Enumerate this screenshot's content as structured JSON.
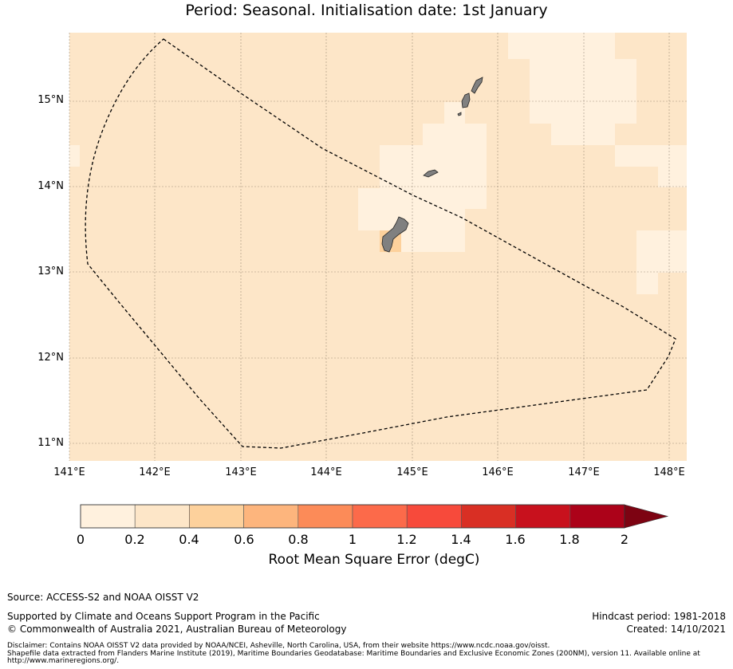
{
  "title": "Period: Seasonal. Initialisation date: 1st January",
  "map": {
    "lon_range": [
      141.0,
      148.2
    ],
    "lat_range": [
      10.8,
      15.8
    ],
    "x_ticks": [
      "141°E",
      "142°E",
      "143°E",
      "144°E",
      "145°E",
      "146°E",
      "147°E",
      "148°E"
    ],
    "y_ticks": [
      "15°N",
      "14°N",
      "13°N",
      "12°N",
      "11°N"
    ],
    "grid": true,
    "base_color": "#fde6c8",
    "low_color": "#fff1de",
    "land_color": "#808080",
    "eez_style": "dashed black line"
  },
  "colorbar": {
    "label": "Root Mean Square Error (degC)",
    "ticks": [
      "0",
      "0.2",
      "0.4",
      "0.6",
      "0.8",
      "1",
      "1.2",
      "1.4",
      "1.6",
      "1.8",
      "2"
    ],
    "colors": [
      "#fff1de",
      "#fde6c8",
      "#fdd19c",
      "#fdb57d",
      "#fc8b58",
      "#fc6a4a",
      "#f74a3b",
      "#d92f24",
      "#c8111d",
      "#ac0219"
    ],
    "extend_color": "#7d0312",
    "extend": "max"
  },
  "footer": {
    "source": "Source: ACCESS-S2 and NOAA OISST V2",
    "support": "Supported by Climate and Oceans Support Program in the Pacific",
    "copyright": "© Commonwealth of Australia 2021, Australian Bureau of Meteorology",
    "hindcast": "Hindcast period: 1981-2018",
    "created": "Created: 14/10/2021",
    "disclaimer_1": "Disclaimer: Contains NOAA OISST V2 data provided by NOAA/NCEI, Asheville, North Carolina, USA, from their website https://www.ncdc.noaa.gov/oisst.",
    "disclaimer_2": "Shapefile data extracted from Flanders Marine Institute (2019), Maritime Boundaries Geodatabase: Maritime Boundaries and Exclusive Economic Zones (200NM), version 11. Available online at",
    "disclaimer_3": "http://www.marineregions.org/."
  }
}
